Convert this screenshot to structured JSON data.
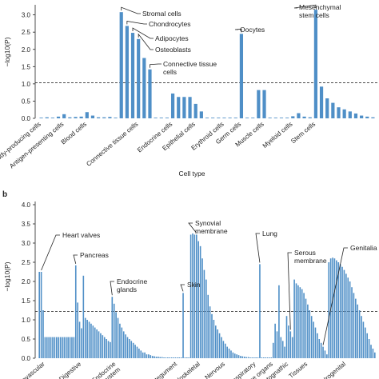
{
  "colors": {
    "bar": "#4f8fc7",
    "axis": "#222222",
    "threshold": "#333333"
  },
  "chart_data": [
    {
      "type": "bar",
      "panel_label": "",
      "ylabel": "−log10(P)",
      "xlabel": "Cell type",
      "ylim": [
        0,
        3.2
      ],
      "yticks": [
        0,
        0.5,
        1.0,
        1.5,
        2.0,
        2.5,
        3.0
      ],
      "threshold": 1.03,
      "values": [
        0.02,
        0.03,
        0.02,
        0.05,
        0.12,
        0.03,
        0.04,
        0.05,
        0.18,
        0.08,
        0.03,
        0.03,
        0.04,
        0.02,
        3.08,
        2.68,
        2.48,
        2.3,
        1.75,
        1.42,
        0.02,
        0.02,
        0.02,
        0.72,
        0.62,
        0.62,
        0.62,
        0.42,
        0.2,
        0.02,
        0.02,
        0.02,
        0.02,
        0.02,
        0.02,
        2.45,
        0.02,
        0.02,
        0.82,
        0.82,
        0.02,
        0.02,
        0.02,
        0.02,
        0.06,
        0.15,
        0.05,
        0.03,
        3.15,
        0.92,
        0.58,
        0.45,
        0.32,
        0.26,
        0.2,
        0.14,
        0.08,
        0.05,
        0.03
      ],
      "tick_labels": [
        {
          "label": "Antibody-producing cells",
          "index": 0
        },
        {
          "label": "Antigen-presenting cells",
          "index": 4
        },
        {
          "label": "Blood cells",
          "index": 8
        },
        {
          "label": "Connective tissue cells",
          "index": 17
        },
        {
          "label": "Endocrine cells",
          "index": 23
        },
        {
          "label": "Epithelial cells",
          "index": 27
        },
        {
          "label": "Erythroid cells",
          "index": 32
        },
        {
          "label": "Germ cells",
          "index": 35
        },
        {
          "label": "Muscle cells",
          "index": 39
        },
        {
          "label": "Myeloid cells",
          "index": 44
        },
        {
          "label": "Stem cells",
          "index": 48
        }
      ],
      "annotations": [
        {
          "label": "Stromal cells",
          "index": 14
        },
        {
          "label": "Chondrocytes",
          "index": 15
        },
        {
          "label": "Adipocytes",
          "index": 16
        },
        {
          "label": "Osteoblasts",
          "index": 17
        },
        {
          "label": "Connective tissue",
          "label2": "cells",
          "index": 19
        },
        {
          "label": "Oocytes",
          "index": 35
        },
        {
          "label": "Mesenchymal",
          "label2": "stem cells",
          "index": 48
        }
      ]
    },
    {
      "type": "bar",
      "panel_label": "b",
      "ylabel": "−log10(P)",
      "xlabel": "",
      "ylim": [
        0,
        4.0
      ],
      "yticks": [
        0,
        0.5,
        1.0,
        1.5,
        2.0,
        2.5,
        3.0,
        3.5,
        4.0
      ],
      "threshold": 1.22,
      "values": [
        2.25,
        2.25,
        1.25,
        0.55,
        0.55,
        0.55,
        0.55,
        0.55,
        0.55,
        0.55,
        0.55,
        0.55,
        0.55,
        0.55,
        0.55,
        0.55,
        0.55,
        0.55,
        0.55,
        2.42,
        1.45,
        0.95,
        0.78,
        2.15,
        1.05,
        1.0,
        0.95,
        0.9,
        0.85,
        0.8,
        0.75,
        0.7,
        0.65,
        0.6,
        0.55,
        0.5,
        0.45,
        0.42,
        1.6,
        1.42,
        1.2,
        1.05,
        0.9,
        0.8,
        0.7,
        0.62,
        0.55,
        0.5,
        0.45,
        0.4,
        0.35,
        0.3,
        0.25,
        0.2,
        0.15,
        0.15,
        0.1,
        0.1,
        0.08,
        0.06,
        0.05,
        0.04,
        0.04,
        0.03,
        0.03,
        0.02,
        0.02,
        0.02,
        0.02,
        0.02,
        0.02,
        0.02,
        0.02,
        0.02,
        0.02,
        1.7,
        0.02,
        0.02,
        0.02,
        3.22,
        3.25,
        3.22,
        3.22,
        3.05,
        2.92,
        2.6,
        2.3,
        2.05,
        1.65,
        1.35,
        1.15,
        1.0,
        0.85,
        0.75,
        0.65,
        0.55,
        0.45,
        0.38,
        0.3,
        0.25,
        0.2,
        0.15,
        0.12,
        0.1,
        0.08,
        0.06,
        0.05,
        0.04,
        0.03,
        0.03,
        0.02,
        0.02,
        0.02,
        0.02,
        0.02,
        2.45,
        0.02,
        0.02,
        0.02,
        0.02,
        0.02,
        0.02,
        0.4,
        0.9,
        0.7,
        1.9,
        0.55,
        0.45,
        0.3,
        1.1,
        0.85,
        0.7,
        0.55,
        2.05,
        1.95,
        1.9,
        1.85,
        1.8,
        1.7,
        1.55,
        1.4,
        1.25,
        1.1,
        0.95,
        0.8,
        0.65,
        0.5,
        0.4,
        0.3,
        0.2,
        0.1,
        2.5,
        2.6,
        2.62,
        2.6,
        2.55,
        2.5,
        2.45,
        2.38,
        2.3,
        2.2,
        2.1,
        2.0,
        1.85,
        1.7,
        1.55,
        1.4,
        1.25,
        1.1,
        0.95,
        0.8,
        0.65,
        0.5,
        0.35,
        0.25,
        0.15
      ],
      "tick_labels": [
        {
          "label": "Cardiovascular",
          "index": 3
        },
        {
          "label": "Digestive",
          "index": 22
        },
        {
          "label": "Endocrine",
          "label2": "system",
          "index": 40
        },
        {
          "label": "Integument",
          "index": 72
        },
        {
          "label": "Musculoskeletal",
          "index": 84
        },
        {
          "label": "Nervous",
          "index": 97
        },
        {
          "label": "Respiratory",
          "index": 113
        },
        {
          "label": "Sense organs",
          "index": 122
        },
        {
          "label": "Stomatognathic",
          "index": 130
        },
        {
          "label": "Tissues",
          "index": 140
        },
        {
          "label": "Urogenital",
          "index": 160
        }
      ],
      "annotations": [
        {
          "label": "Heart valves",
          "index": 1,
          "elbow": [
            3,
            80
          ]
        },
        {
          "label": "Pancreas",
          "index": 19,
          "elbow": [
            22,
            8
          ]
        },
        {
          "label": "Endocrine",
          "label2": "glands",
          "index": 38,
          "elbow": [
            40,
            6
          ]
        },
        {
          "label": "Skin",
          "index": 75,
          "elbow": [
            16,
            8
          ]
        },
        {
          "label": "Synovial",
          "label2": "membrane",
          "index": 82,
          "elbow": [
            8,
            4
          ]
        },
        {
          "label": "Lung",
          "index": 115,
          "elbow": [
            6,
            4
          ]
        },
        {
          "label": "Serous",
          "label2": "membrane",
          "index": 131,
          "elbow": [
            6,
            4
          ]
        },
        {
          "label": "Genitalia",
          "index": 148,
          "elbow": [
            4,
            4
          ]
        }
      ]
    }
  ]
}
